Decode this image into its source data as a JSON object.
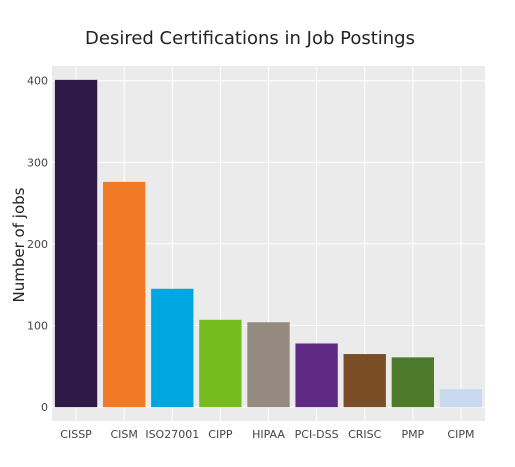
{
  "chart_data": {
    "type": "bar",
    "title": "Desired Certifications in Job Postings",
    "xlabel": "",
    "ylabel": "Number of jobs",
    "categories": [
      "CISSP",
      "CISM",
      "ISO27001",
      "CIPP",
      "HIPAA",
      "PCI-DSS",
      "CRISC",
      "PMP",
      "CIPM"
    ],
    "values": [
      401,
      276,
      145,
      107,
      104,
      78,
      65,
      61,
      22
    ],
    "colors": [
      "#2E1A47",
      "#F07A26",
      "#00A6DF",
      "#77BC1F",
      "#948A80",
      "#5E2A84",
      "#7A4D27",
      "#4B7B2B",
      "#C8D9F0"
    ],
    "ylim": [
      -17,
      418
    ],
    "yticks": [
      0,
      100,
      200,
      300,
      400
    ],
    "ytick_labels": [
      "0",
      "100",
      "200",
      "300",
      "400"
    ],
    "grid": true,
    "legend": false,
    "plot_background": "#EBEBEB"
  }
}
